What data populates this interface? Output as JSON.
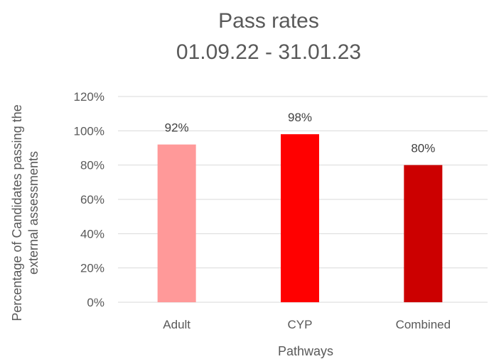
{
  "chart_data": {
    "type": "bar",
    "title": "Pass rates",
    "subtitle": "01.09.22 - 31.01.23",
    "xlabel": "Pathways",
    "ylabel": [
      "Percentage of Candidates passing the",
      "external assessments"
    ],
    "categories": [
      "Adult",
      "CYP",
      "Combined"
    ],
    "values": [
      0.92,
      0.98,
      0.8
    ],
    "data_labels": [
      "92%",
      "98%",
      "80%"
    ],
    "bar_colors": [
      "#FF9999",
      "#FF0000",
      "#CC0000"
    ],
    "ylim": [
      0,
      1.2
    ],
    "yticks": [
      0,
      0.2,
      0.4,
      0.6,
      0.8,
      1.0,
      1.2
    ],
    "ytick_labels": [
      "0%",
      "20%",
      "40%",
      "60%",
      "80%",
      "100%",
      "120%"
    ],
    "grid": true,
    "gridline_color": "#D9D9D9",
    "legend": "none"
  }
}
